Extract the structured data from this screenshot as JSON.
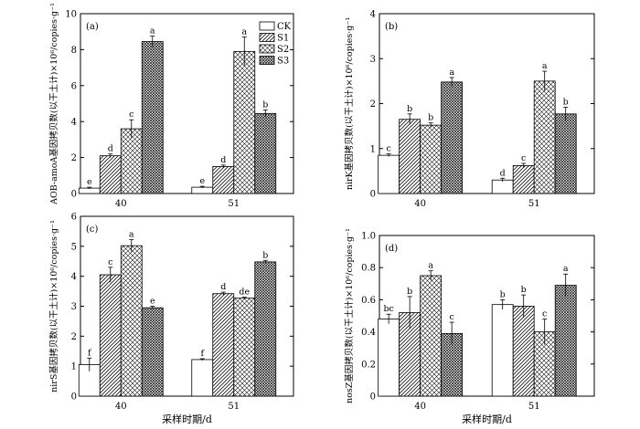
{
  "legend": [
    "CK",
    "S1",
    "S2",
    "S3"
  ],
  "chart_data": [
    {
      "type": "bar",
      "panel_label": "(a)",
      "categories": [
        "40",
        "51"
      ],
      "ylabel": "AOB-amoA基因拷贝数(以干土计)×10⁶/copies·g⁻¹",
      "xlabel": "",
      "ylim": [
        0,
        10
      ],
      "yticks": [
        0,
        2,
        4,
        6,
        8,
        10
      ],
      "ytick_labels": [
        "0",
        "2",
        "4",
        "6",
        "8",
        "10"
      ],
      "legend_position": "top-right",
      "series": [
        {
          "name": "CK",
          "values": [
            0.3,
            0.35
          ],
          "errors": [
            0.05,
            0.05
          ],
          "letters": [
            "e",
            "e"
          ]
        },
        {
          "name": "S1",
          "values": [
            2.1,
            1.5
          ],
          "errors": [
            0.1,
            0.08
          ],
          "letters": [
            "d",
            "d"
          ]
        },
        {
          "name": "S2",
          "values": [
            3.6,
            7.9
          ],
          "errors": [
            0.5,
            0.8
          ],
          "letters": [
            "c",
            "a"
          ]
        },
        {
          "name": "S3",
          "values": [
            8.45,
            4.45
          ],
          "errors": [
            0.3,
            0.2
          ],
          "letters": [
            "a",
            "b"
          ]
        }
      ]
    },
    {
      "type": "bar",
      "panel_label": "(b)",
      "categories": [
        "40",
        "51"
      ],
      "ylabel": "nirK基因拷贝数(以干土计)×10⁶/copies·g⁻¹",
      "xlabel": "",
      "ylim": [
        0,
        4
      ],
      "yticks": [
        0,
        1,
        2,
        3,
        4
      ],
      "ytick_labels": [
        "0",
        "1",
        "2",
        "3",
        "4"
      ],
      "series": [
        {
          "name": "CK",
          "values": [
            0.85,
            0.3
          ],
          "errors": [
            0.03,
            0.04
          ],
          "letters": [
            "c",
            "d"
          ]
        },
        {
          "name": "S1",
          "values": [
            1.65,
            0.62
          ],
          "errors": [
            0.12,
            0.05
          ],
          "letters": [
            "b",
            "c"
          ]
        },
        {
          "name": "S2",
          "values": [
            1.52,
            2.5
          ],
          "errors": [
            0.05,
            0.22
          ],
          "letters": [
            "b",
            "a"
          ]
        },
        {
          "name": "S3",
          "values": [
            2.48,
            1.77
          ],
          "errors": [
            0.1,
            0.15
          ],
          "letters": [
            "a",
            "b"
          ]
        }
      ]
    },
    {
      "type": "bar",
      "panel_label": "(c)",
      "categories": [
        "40",
        "51"
      ],
      "ylabel": "nirS基因拷贝数(以干土计)×10⁶/copies·g⁻¹",
      "xlabel": "采样时期/d",
      "ylim": [
        0,
        6
      ],
      "yticks": [
        0,
        1,
        2,
        3,
        4,
        5,
        6
      ],
      "ytick_labels": [
        "0",
        "1",
        "2",
        "3",
        "4",
        "5",
        "6"
      ],
      "series": [
        {
          "name": "CK",
          "values": [
            1.05,
            1.22
          ],
          "errors": [
            0.22,
            0.03
          ],
          "letters": [
            "f",
            "f"
          ]
        },
        {
          "name": "S1",
          "values": [
            4.05,
            3.42
          ],
          "errors": [
            0.25,
            0.05
          ],
          "letters": [
            "c",
            "d"
          ]
        },
        {
          "name": "S2",
          "values": [
            5.02,
            3.27
          ],
          "errors": [
            0.2,
            0.03
          ],
          "letters": [
            "a",
            "de"
          ]
        },
        {
          "name": "S3",
          "values": [
            2.95,
            4.48
          ],
          "errors": [
            0.05,
            0.05
          ],
          "letters": [
            "e",
            "b"
          ]
        }
      ]
    },
    {
      "type": "bar",
      "panel_label": "(d)",
      "categories": [
        "40",
        "51"
      ],
      "ylabel": "nosZ基因拷贝数(以干土计)×10⁶/copies·g⁻¹",
      "xlabel": "采样时期/d",
      "ylim": [
        0,
        1.0
      ],
      "yticks": [
        0,
        0.2,
        0.4,
        0.6,
        0.8,
        1.0
      ],
      "ytick_labels": [
        "0",
        "0.2",
        "0.4",
        "0.6",
        "0.8",
        "1.0"
      ],
      "series": [
        {
          "name": "CK",
          "values": [
            0.48,
            0.57
          ],
          "errors": [
            0.03,
            0.03
          ],
          "letters": [
            "bc",
            "b"
          ]
        },
        {
          "name": "S1",
          "values": [
            0.52,
            0.56
          ],
          "errors": [
            0.1,
            0.07
          ],
          "letters": [
            "b",
            "b"
          ]
        },
        {
          "name": "S2",
          "values": [
            0.75,
            0.4
          ],
          "errors": [
            0.03,
            0.08
          ],
          "letters": [
            "a",
            "c"
          ]
        },
        {
          "name": "S3",
          "values": [
            0.39,
            0.69
          ],
          "errors": [
            0.07,
            0.07
          ],
          "letters": [
            "c",
            "a"
          ]
        }
      ]
    }
  ]
}
